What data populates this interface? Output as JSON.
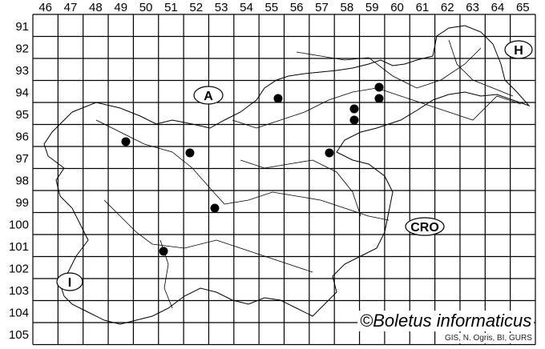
{
  "grid": {
    "columns": [
      "46",
      "47",
      "48",
      "49",
      "50",
      "51",
      "52",
      "53",
      "54",
      "55",
      "56",
      "57",
      "58",
      "59",
      "60",
      "61",
      "62",
      "63",
      "64",
      "65"
    ],
    "rows": [
      "91",
      "92",
      "93",
      "94",
      "95",
      "96",
      "97",
      "98",
      "99",
      "100",
      "101",
      "102",
      "103",
      "104",
      "105"
    ]
  },
  "country_labels": [
    {
      "text": "A",
      "meaning": "Austria"
    },
    {
      "text": "H",
      "meaning": "Hungary"
    },
    {
      "text": "CRO",
      "meaning": "Croatia"
    },
    {
      "text": "I",
      "meaning": "Italy"
    }
  ],
  "records": [
    {
      "col": 59.78,
      "row": 94.31
    },
    {
      "col": 59.78,
      "row": 94.82
    },
    {
      "col": 55.76,
      "row": 94.82
    },
    {
      "col": 58.79,
      "row": 95.29
    },
    {
      "col": 58.79,
      "row": 95.8
    },
    {
      "col": 49.7,
      "row": 96.78
    },
    {
      "col": 52.25,
      "row": 97.29
    },
    {
      "col": 57.8,
      "row": 97.29
    },
    {
      "col": 53.24,
      "row": 99.8
    },
    {
      "col": 51.2,
      "row": 101.76
    }
  ],
  "credit": "©Boletus informaticus",
  "source": "GIS, N. Ogris, BI, GURS",
  "colors": {
    "marker": "#000000",
    "lines": "#000000"
  }
}
